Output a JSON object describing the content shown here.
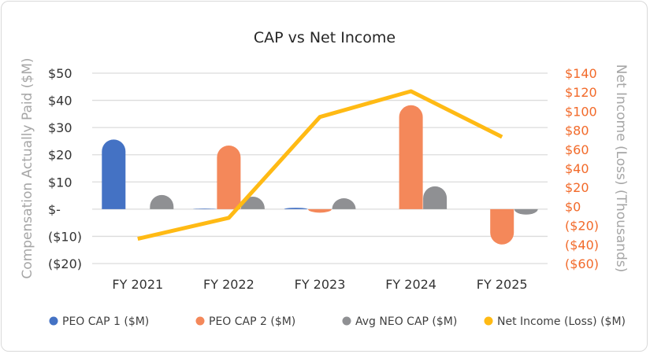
{
  "chart_data": {
    "type": "bar",
    "title": "CAP vs Net Income",
    "categories": [
      "FY 2021",
      "FY 2022",
      "FY 2023",
      "FY 2024",
      "FY 2025"
    ],
    "ylabel": "Compensation Actually Paid ($M)",
    "ylabel_right": "Net Income (Loss) (Thousands)",
    "ylim": [
      -20,
      50
    ],
    "ylim_right": [
      -60,
      140
    ],
    "yticks": [
      50,
      40,
      30,
      20,
      10,
      0,
      -10,
      -20
    ],
    "ytick_labels": [
      "$50",
      "$40",
      "$30",
      "$20",
      "$10",
      "$-",
      "($10)",
      "($20)"
    ],
    "yticks_right": [
      140,
      120,
      100,
      80,
      60,
      40,
      20,
      0,
      -20,
      -40,
      -60
    ],
    "ytick_labels_right": [
      "$140",
      "$120",
      "$100",
      "$80",
      "$60",
      "$40",
      "$20",
      "$0",
      "($20)",
      "($40)",
      "($60)"
    ],
    "grid": true,
    "legend_position": "bottom",
    "series": [
      {
        "name": "PEO CAP 1 ($M)",
        "type": "bar",
        "axis": "left",
        "color": "#4472c4",
        "values": [
          25.6,
          0.2,
          0.5,
          0,
          0
        ]
      },
      {
        "name": "PEO CAP 2 ($M)",
        "type": "bar",
        "axis": "left",
        "color": "#f4885a",
        "values": [
          0,
          23.4,
          -1.3,
          38.2,
          -13
        ]
      },
      {
        "name": "Avg NEO CAP ($M)",
        "type": "bar",
        "axis": "left",
        "color": "#8f9093",
        "values": [
          5.2,
          4.6,
          4.0,
          8.4,
          -2
        ]
      },
      {
        "name": "Net Income (Loss) ($M)",
        "type": "line",
        "axis": "right",
        "color": "#ffba14",
        "values": [
          -34,
          -12,
          94,
          121,
          73
        ]
      }
    ],
    "colors": {
      "axis_text": "#333333",
      "axis_title": "#a6a6a6",
      "right_tick_text": "#f26a2a",
      "grid": "#dcdcdc"
    }
  }
}
